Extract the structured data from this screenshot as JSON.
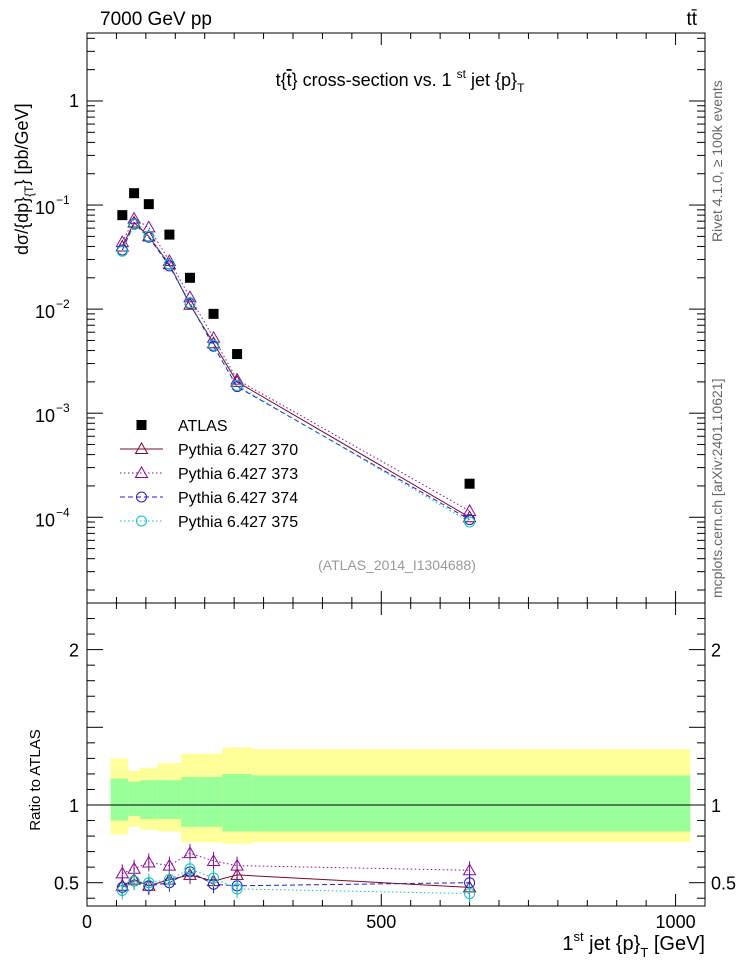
{
  "header": {
    "energy_label": "7000 GeV pp",
    "process_label": "tt̄"
  },
  "side_labels": {
    "rivet": "Rivet 4.1.0, ≥ 100k events",
    "mcplots": "mcplots.cern.ch [arXiv:2401.10621]"
  },
  "colors": {
    "atlas": "#000000",
    "p370": "#7a0a2a",
    "p373": "#8a0a9a",
    "p374": "#2a1ad0",
    "p375": "#10c0c0",
    "band_inner": "#99ff99",
    "band_outer": "#ffff99",
    "watermark": "#999999"
  },
  "chart_data": [
    {
      "type": "scatter",
      "panel": "main",
      "title": "t{t̄} cross-section vs. 1 st jet {p}_T",
      "title_parts": {
        "pre": "t{",
        "tbar": "t",
        "mid": "} cross-section vs. 1 ",
        "sup": "st",
        "post": " jet {p}",
        "sub": "T"
      },
      "ylabel_parts": {
        "pre": "dσ/{dp}",
        "sub": "{T",
        "post": "} [pb/GeV]"
      },
      "ylabel": "dσ/{dp}_{T} [pb/GeV]",
      "yscale": "log",
      "xlim": [
        0,
        1050
      ],
      "ylim": [
        1.5e-05,
        4.5
      ],
      "y_ticks": [
        {
          "value": 1,
          "label": "1"
        },
        {
          "value": 0.1,
          "base": "10",
          "exp": "−1"
        },
        {
          "value": 0.01,
          "base": "10",
          "exp": "−2"
        },
        {
          "value": 0.001,
          "base": "10",
          "exp": "−3"
        },
        {
          "value": 0.0001,
          "base": "10",
          "exp": "−4"
        }
      ],
      "watermark": "(ATLAS_2014_I1304688)",
      "legend_position": "bottom-left",
      "series": [
        {
          "name": "ATLAS",
          "style": "data",
          "x": [
            60,
            80,
            105,
            140,
            175,
            215,
            255,
            650
          ],
          "y": [
            0.08,
            0.13,
            0.102,
            0.052,
            0.02,
            0.009,
            0.0037,
            0.00021
          ]
        },
        {
          "name": "Pythia 6.427 370",
          "style": "solid",
          "marker": "triangle-open",
          "x": [
            60,
            80,
            105,
            140,
            175,
            215,
            255,
            650
          ],
          "y": [
            0.04,
            0.068,
            0.05,
            0.027,
            0.011,
            0.0047,
            0.002,
            0.0001
          ]
        },
        {
          "name": "Pythia 6.427 373",
          "style": "dotted",
          "marker": "triangle-open",
          "x": [
            60,
            80,
            105,
            140,
            175,
            215,
            255,
            650
          ],
          "y": [
            0.044,
            0.074,
            0.061,
            0.029,
            0.013,
            0.0053,
            0.0021,
            0.000115
          ]
        },
        {
          "name": "Pythia 6.427 374",
          "style": "dashed",
          "marker": "circle-open",
          "x": [
            60,
            80,
            105,
            140,
            175,
            215,
            255,
            650
          ],
          "y": [
            0.037,
            0.066,
            0.049,
            0.026,
            0.0113,
            0.0044,
            0.0018,
            9.5e-05
          ]
        },
        {
          "name": "Pythia 6.427 375",
          "style": "dotted",
          "marker": "circle-open",
          "x": [
            60,
            80,
            105,
            140,
            175,
            215,
            255,
            650
          ],
          "y": [
            0.036,
            0.065,
            0.05,
            0.027,
            0.0115,
            0.0045,
            0.00185,
            9e-05
          ]
        }
      ]
    },
    {
      "type": "line",
      "panel": "ratio",
      "ylabel": "Ratio to ATLAS",
      "xlabel": "1 st jet {p}_T [GeV]",
      "xlabel_parts": {
        "pre": "1",
        "sup": "st",
        "mid": " jet {p}",
        "sub": "T",
        "post": " [GeV]"
      },
      "xlim": [
        0,
        1050
      ],
      "ylim": [
        0.35,
        2.3
      ],
      "x_ticks": [
        {
          "value": 0,
          "label": "0"
        },
        {
          "value": 500,
          "label": "500"
        },
        {
          "value": 1000,
          "label": "1000"
        }
      ],
      "y_ticks": [
        {
          "value": 0.5,
          "label": "0.5"
        },
        {
          "value": 1,
          "label": "1"
        },
        {
          "value": 2,
          "label": "2"
        }
      ],
      "reference_line": 1,
      "bands": {
        "edges": [
          40,
          70,
          90,
          120,
          160,
          190,
          230,
          280,
          1025
        ],
        "inner_lo": [
          0.9,
          0.93,
          0.91,
          0.91,
          0.86,
          0.86,
          0.83,
          0.83
        ],
        "inner_hi": [
          1.17,
          1.15,
          1.16,
          1.16,
          1.18,
          1.18,
          1.2,
          1.19
        ],
        "outer_lo": [
          0.81,
          0.86,
          0.84,
          0.83,
          0.76,
          0.76,
          0.75,
          0.76
        ],
        "outer_hi": [
          1.3,
          1.22,
          1.24,
          1.27,
          1.33,
          1.33,
          1.37,
          1.36
        ]
      },
      "series": [
        {
          "name": "Pythia 6.427 370",
          "style": "solid",
          "marker": "triangle-open",
          "x": [
            60,
            80,
            105,
            140,
            175,
            215,
            255,
            650
          ],
          "y": [
            0.48,
            0.52,
            0.48,
            0.52,
            0.55,
            0.51,
            0.55,
            0.47
          ]
        },
        {
          "name": "Pythia 6.427 373",
          "style": "dotted",
          "marker": "triangle-open",
          "x": [
            60,
            80,
            105,
            140,
            175,
            215,
            255,
            650
          ],
          "y": [
            0.56,
            0.59,
            0.63,
            0.61,
            0.69,
            0.64,
            0.61,
            0.58
          ]
        },
        {
          "name": "Pythia 6.427 374",
          "style": "dashed",
          "marker": "circle-open",
          "x": [
            60,
            80,
            105,
            140,
            175,
            215,
            255,
            650
          ],
          "y": [
            0.47,
            0.51,
            0.48,
            0.5,
            0.57,
            0.49,
            0.48,
            0.5
          ]
        },
        {
          "name": "Pythia 6.427 375",
          "style": "dotted",
          "marker": "circle-open",
          "x": [
            60,
            80,
            105,
            140,
            175,
            215,
            255,
            650
          ],
          "y": [
            0.45,
            0.51,
            0.5,
            0.52,
            0.59,
            0.53,
            0.46,
            0.43
          ]
        }
      ]
    }
  ]
}
